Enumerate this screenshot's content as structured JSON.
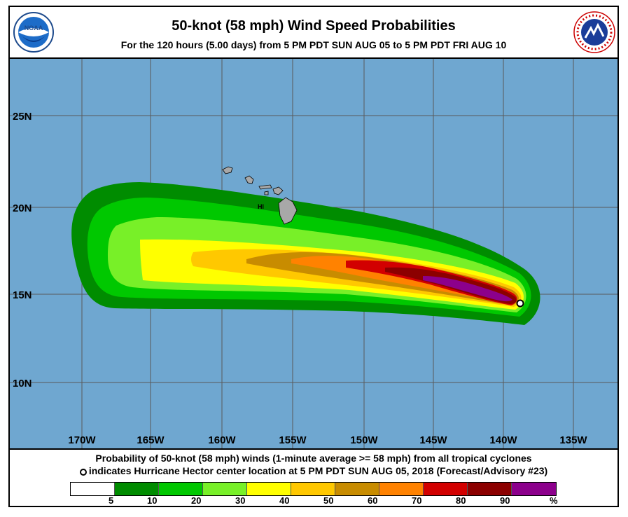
{
  "header": {
    "title": "50-knot (58 mph) Wind Speed Probabilities",
    "subtitle": "For the 120 hours (5.00 days) from 5 PM PDT SUN AUG 05 to 5 PM PDT FRI AUG 10",
    "noaa_logo_text": "NOAA",
    "nws_logo_text": "NATIONAL WEATHER SERVICE"
  },
  "map": {
    "ocean_color": "#6fa7d0",
    "land_color": "#a8a8a8",
    "latitude_labels": [
      "25N",
      "20N",
      "15N",
      "10N"
    ],
    "longitude_labels": [
      "170W",
      "165W",
      "160W",
      "155W",
      "150W",
      "145W",
      "140W",
      "135W"
    ],
    "region_label": "HI",
    "storm_marker": "hurricane-hector-center"
  },
  "footer": {
    "line1": "Probability of 50-knot (58 mph) winds (1-minute average >= 58 mph) from all tropical cyclones",
    "line2": "indicates Hurricane Hector center location at 5 PM PDT SUN AUG 05, 2018 (Forecast/Advisory #23)"
  },
  "legend": {
    "colors": [
      "#ffffff",
      "#008c00",
      "#00c800",
      "#78f028",
      "#ffff00",
      "#ffc800",
      "#c88c00",
      "#ff8200",
      "#d20000",
      "#8c0000",
      "#8c008c"
    ],
    "labels": [
      "5",
      "10",
      "20",
      "30",
      "40",
      "50",
      "60",
      "70",
      "80",
      "90",
      "%"
    ]
  }
}
